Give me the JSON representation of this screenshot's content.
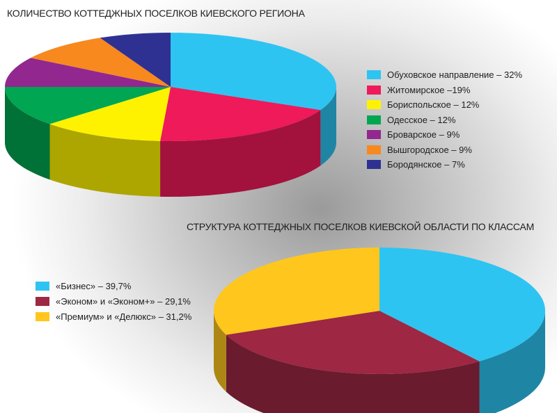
{
  "chart_data": [
    {
      "type": "pie",
      "title": "КОЛИЧЕСТВО КОТТЕДЖНЫХ ПОСЕЛКОВ КИЕВСКОГО РЕГИОНА",
      "legend_position": "right",
      "slices": [
        {
          "label": "Обуховское направление – 32%",
          "value": 32,
          "color": "#2ec4f1"
        },
        {
          "label": "Житомирское –19%",
          "value": 19,
          "color": "#ee1a5a"
        },
        {
          "label": "Бориспольское – 12%",
          "value": 12,
          "color": "#fff200"
        },
        {
          "label": "Одесское – 12%",
          "value": 12,
          "color": "#00a651"
        },
        {
          "label": "Броварское – 9%",
          "value": 9,
          "color": "#92278f"
        },
        {
          "label": "Вышгородское – 9%",
          "value": 9,
          "color": "#f7891f"
        },
        {
          "label": "Бородянское – 7%",
          "value": 7,
          "color": "#2e3192"
        }
      ]
    },
    {
      "type": "pie",
      "title": "СТРУКТУРА КОТТЕДЖНЫХ ПОСЕЛКОВ КИЕВСКОЙ ОБЛАСТИ ПО КЛАССАМ",
      "legend_position": "left",
      "slices": [
        {
          "label": "«Бизнес» – 39,7%",
          "value": 39.7,
          "color": "#2ec4f1"
        },
        {
          "label": "«Эконом» и «Эконом+» – 29,1%",
          "value": 29.1,
          "color": "#9e2743"
        },
        {
          "label": "«Премиум» и «Делюкс» – 31,2%",
          "value": 31.2,
          "color": "#ffc61e"
        }
      ]
    }
  ]
}
